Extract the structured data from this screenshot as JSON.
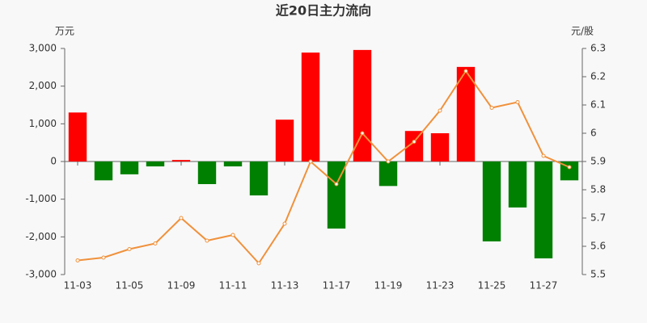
{
  "chart_data": {
    "type": "bar",
    "title": "近20日主力流向",
    "y_label": "万元",
    "y2_label": "元/股",
    "categories": [
      "11-03",
      null,
      "11-05",
      null,
      "11-09",
      null,
      "11-11",
      null,
      "11-13",
      null,
      "11-17",
      null,
      "11-19",
      null,
      "11-23",
      null,
      "11-25",
      null,
      "11-27",
      null
    ],
    "series": [
      {
        "type": "bar",
        "positive_color": "#ff0000",
        "negative_color": "#008000",
        "values": [
          1300,
          -500,
          -340,
          -130,
          40,
          -600,
          -130,
          -900,
          1110,
          2890,
          -1780,
          2960,
          -650,
          810,
          750,
          2510,
          -2120,
          -1220,
          -2570,
          -500
        ]
      },
      {
        "type": "line",
        "axis": "y2",
        "color": "#f0913b",
        "values": [
          5.55,
          5.56,
          5.59,
          5.61,
          5.7,
          5.62,
          5.64,
          5.54,
          5.68,
          5.9,
          5.82,
          6.0,
          5.9,
          5.97,
          6.08,
          6.22,
          6.09,
          6.11,
          5.92,
          5.88
        ]
      }
    ],
    "ylim": [
      -3000,
      3000
    ],
    "yticks": [
      {
        "value": 3000,
        "label": "3,000"
      },
      {
        "value": 2000,
        "label": "2,000"
      },
      {
        "value": 1000,
        "label": "1,000"
      },
      0,
      {
        "value": -1000,
        "label": "-1,000"
      },
      {
        "value": -2000,
        "label": "-2,000"
      },
      {
        "value": -3000,
        "label": "-3,000"
      }
    ],
    "y2lim": [
      5.5,
      6.3
    ],
    "y2ticks": [
      6.3,
      6.2,
      6.1,
      6,
      5.9,
      5.8,
      5.7,
      5.6,
      5.5
    ]
  }
}
